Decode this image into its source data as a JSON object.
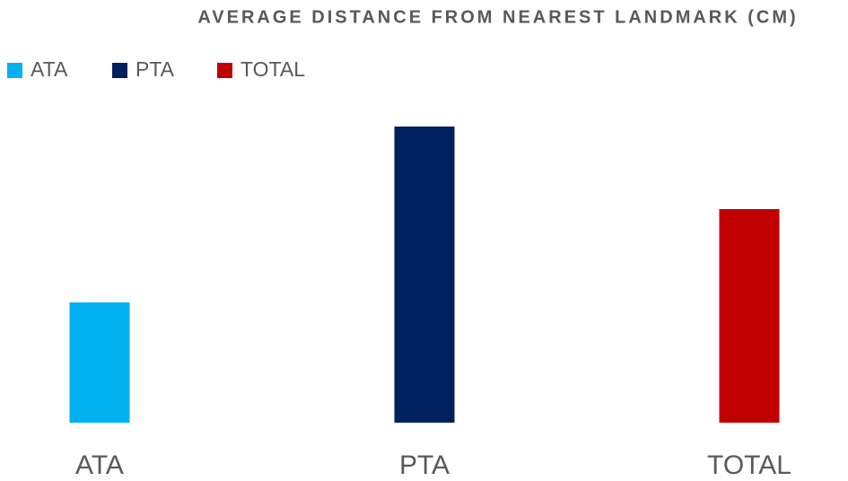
{
  "chart_data": {
    "type": "bar",
    "title": "AVERAGE DISTANCE FROM NEAREST LANDMARK (CM)",
    "categories": [
      "ATA",
      "PTA",
      "TOTAL"
    ],
    "values": [
      1.34,
      3.3,
      2.38
    ],
    "colors": [
      "#00b0f0",
      "#002060",
      "#c00000"
    ]
  }
}
